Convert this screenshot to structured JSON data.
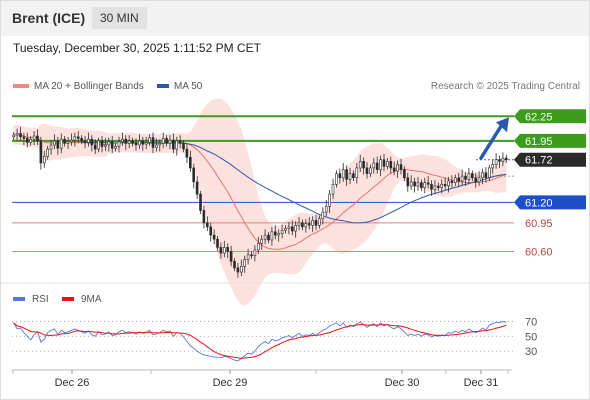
{
  "header": {
    "instrument": "Brent (ICE)",
    "timeframe": "30 MIN"
  },
  "timestamp": "Tuesday, December 30, 2025 1:11:52 PM CET",
  "legend": {
    "ma20": {
      "label": "MA 20 + Bollinger Bands",
      "color": "#f08a80"
    },
    "ma50": {
      "label": "MA 50",
      "color": "#2d5aa8"
    }
  },
  "research": "Research © 2025 Trading Central",
  "rsi_legend": {
    "rsi": {
      "label": "RSI",
      "color": "#5577dd"
    },
    "ma9": {
      "label": "9MA",
      "color": "#ee1111"
    }
  },
  "chart_data": {
    "type": "candlestick",
    "price_ylim": [
      60.35,
      62.4
    ],
    "levels": [
      {
        "value": 62.25,
        "label": "62.25",
        "kind": "resistance",
        "color": "#3c9c1c"
      },
      {
        "value": 61.95,
        "label": "61.95",
        "kind": "resistance",
        "color": "#3c9c1c"
      },
      {
        "value": 61.72,
        "label": "61.72",
        "kind": "last",
        "color": "#2a2a2a"
      },
      {
        "value": 61.2,
        "label": "61.20",
        "kind": "pivot",
        "color": "#1f4fc8"
      },
      {
        "value": 60.95,
        "label": "60.95",
        "kind": "support",
        "color": "#e08080"
      },
      {
        "value": 60.6,
        "label": "60.60",
        "kind": "support",
        "color": "#e08080"
      }
    ],
    "x_labels": [
      "Dec 26",
      "Dec 29",
      "Dec 30",
      "Dec 31"
    ],
    "close": [
      62.02,
      62.04,
      62.0,
      61.98,
      61.93,
      61.97,
      62.01,
      61.95,
      61.68,
      61.76,
      61.85,
      61.9,
      61.95,
      61.86,
      61.97,
      61.92,
      61.94,
      61.96,
      62.0,
      61.98,
      61.95,
      61.93,
      61.97,
      61.9,
      61.85,
      61.95,
      61.88,
      61.9,
      61.94,
      61.86,
      61.88,
      61.94,
      61.97,
      61.92,
      61.95,
      61.92,
      61.9,
      61.95,
      61.91,
      61.93,
      61.99,
      61.87,
      61.9,
      61.92,
      61.98,
      61.92,
      61.96,
      61.85,
      61.95,
      61.92,
      61.85,
      61.75,
      61.62,
      61.45,
      61.3,
      61.1,
      60.95,
      60.9,
      60.8,
      60.75,
      60.65,
      60.58,
      60.65,
      60.6,
      60.48,
      60.4,
      60.35,
      60.42,
      60.5,
      60.56,
      60.55,
      60.62,
      60.7,
      60.75,
      60.8,
      60.74,
      60.84,
      60.8,
      60.82,
      60.86,
      60.88,
      60.9,
      60.85,
      60.92,
      60.95,
      60.9,
      60.94,
      60.92,
      60.98,
      60.92,
      61.0,
      61.08,
      61.15,
      61.3,
      61.42,
      61.55,
      61.5,
      61.6,
      61.48,
      61.55,
      61.5,
      61.62,
      61.7,
      61.62,
      61.55,
      61.62,
      61.68,
      61.6,
      61.72,
      61.64,
      61.7,
      61.62,
      61.58,
      61.66,
      61.6,
      61.5,
      61.4,
      61.45,
      61.4,
      61.44,
      61.38,
      61.44,
      61.42,
      61.36,
      61.4,
      61.38,
      61.42,
      61.4,
      61.46,
      61.44,
      61.5,
      61.46,
      61.52,
      61.48,
      61.55,
      61.5,
      61.45,
      61.5,
      61.56,
      61.5,
      61.62,
      61.66,
      61.72,
      61.7,
      61.74,
      61.72
    ],
    "ma50_start_index": 20,
    "rsi": {
      "ylim": [
        10,
        80
      ],
      "levels": [
        70,
        50,
        30
      ],
      "tick_labels": [
        "70",
        "50",
        "30"
      ],
      "values": [
        68,
        60,
        61,
        55,
        50,
        45,
        52,
        56,
        42,
        46,
        55,
        58,
        60,
        52,
        58,
        55,
        56,
        58,
        60,
        58,
        56,
        54,
        57,
        52,
        50,
        56,
        52,
        53,
        56,
        51,
        52,
        56,
        58,
        55,
        56,
        55,
        53,
        56,
        54,
        55,
        58,
        52,
        53,
        55,
        58,
        56,
        57,
        50,
        55,
        54,
        49,
        43,
        37,
        34,
        30,
        27,
        25,
        24,
        23,
        22,
        22,
        21,
        23,
        22,
        20,
        18,
        17,
        20,
        24,
        27,
        26,
        30,
        36,
        40,
        43,
        40,
        46,
        44,
        45,
        48,
        49,
        51,
        48,
        51,
        54,
        50,
        52,
        51,
        54,
        51,
        55,
        58,
        60,
        64,
        66,
        68,
        64,
        68,
        62,
        65,
        63,
        67,
        69,
        66,
        62,
        65,
        67,
        63,
        68,
        64,
        66,
        62,
        60,
        63,
        60,
        56,
        51,
        53,
        51,
        53,
        50,
        53,
        52,
        49,
        51,
        50,
        52,
        51,
        55,
        54,
        57,
        55,
        58,
        56,
        60,
        57,
        55,
        57,
        61,
        58,
        65,
        67,
        69,
        68,
        70,
        69
      ]
    }
  }
}
